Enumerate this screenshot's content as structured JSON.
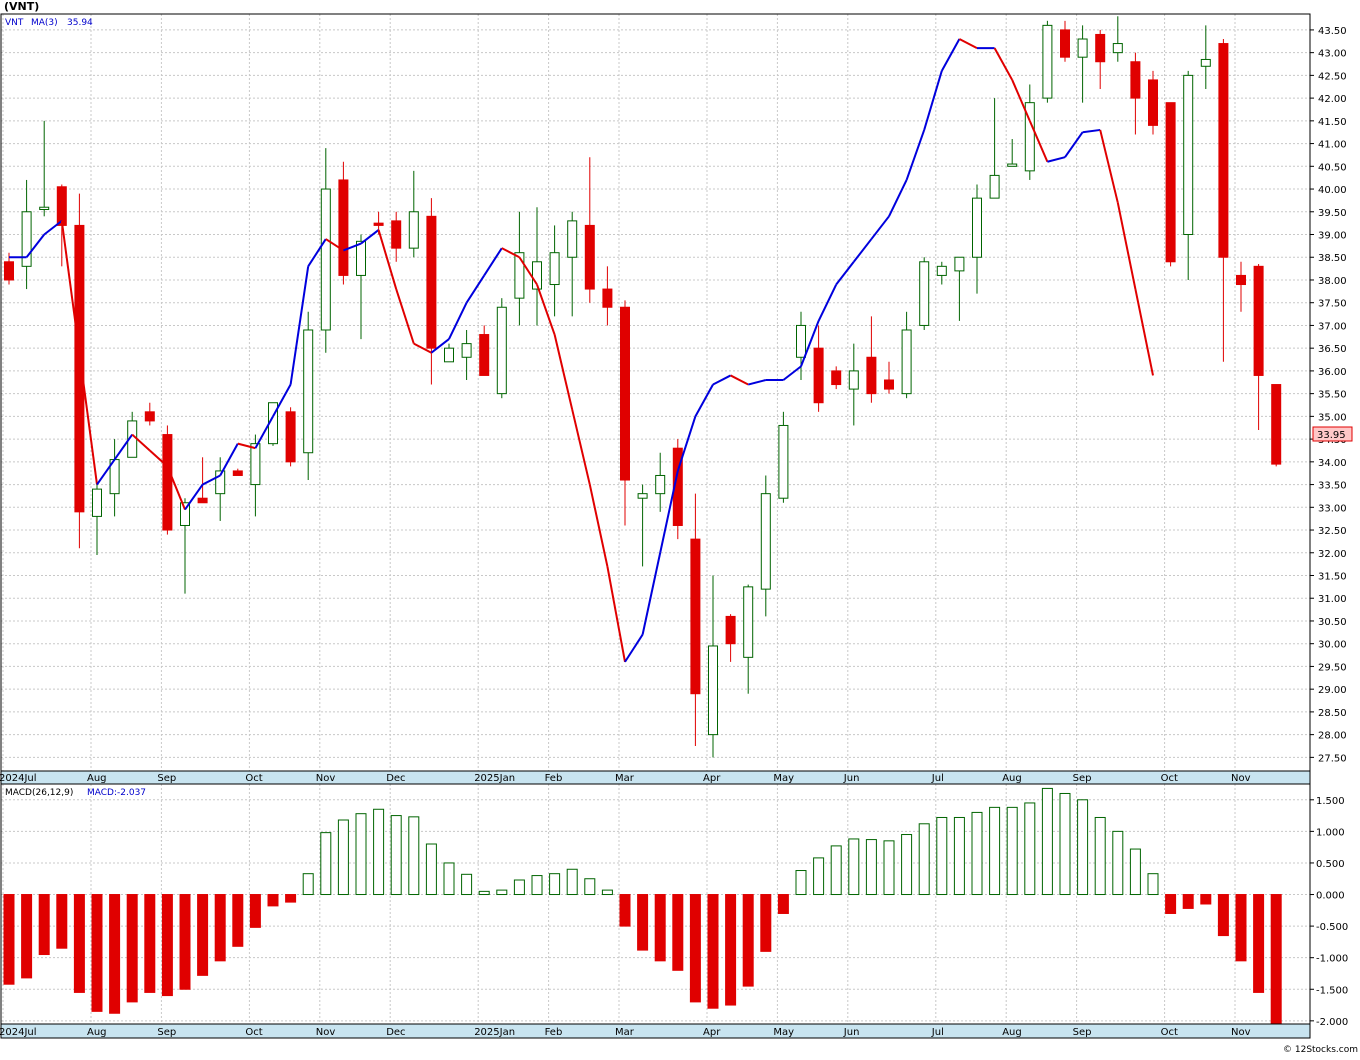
{
  "header": {
    "symbol": "(VNT)"
  },
  "price_panel": {
    "legend_ticker": "VNT",
    "legend_ma_label": "MA(3)",
    "legend_ma_value": "35.94",
    "last_price_label": "33.95"
  },
  "macd_panel": {
    "legend_label": "MACD(26,12,9)",
    "legend_value": "MACD:-2.037"
  },
  "watermark": "© 12Stocks.com",
  "colors": {
    "up": "#006400",
    "down": "#e00000",
    "ma_up": "#0000dd",
    "ma_down": "#e00000",
    "grid": "#c8c8c8",
    "axis_strip": "#c8e4f0",
    "last_price_bg": "#ffc8c8"
  },
  "chart_data": [
    {
      "type": "candlestick",
      "title": "(VNT)",
      "period": "weekly",
      "ylim": [
        27.2,
        43.85
      ],
      "y_ticks": [
        "27.50",
        "28.00",
        "28.50",
        "29.00",
        "29.50",
        "30.00",
        "30.50",
        "31.00",
        "31.50",
        "32.00",
        "32.50",
        "33.00",
        "33.50",
        "34.00",
        "34.50",
        "35.00",
        "35.50",
        "36.00",
        "36.50",
        "37.00",
        "37.50",
        "38.00",
        "38.50",
        "39.00",
        "39.50",
        "40.00",
        "40.50",
        "41.00",
        "41.50",
        "42.00",
        "42.50",
        "43.00",
        "43.50"
      ],
      "x_ticks": [
        {
          "label": "2024Jul",
          "index": 0
        },
        {
          "label": "Aug",
          "index": 5
        },
        {
          "label": "Sep",
          "index": 9
        },
        {
          "label": "Oct",
          "index": 14
        },
        {
          "label": "Nov",
          "index": 18
        },
        {
          "label": "Dec",
          "index": 22
        },
        {
          "label": "2025Jan",
          "index": 27
        },
        {
          "label": "Feb",
          "index": 31
        },
        {
          "label": "Mar",
          "index": 35
        },
        {
          "label": "Apr",
          "index": 40
        },
        {
          "label": "May",
          "index": 44
        },
        {
          "label": "Jun",
          "index": 48
        },
        {
          "label": "Jul",
          "index": 53
        },
        {
          "label": "Aug",
          "index": 57
        },
        {
          "label": "Sep",
          "index": 61
        },
        {
          "label": "Oct",
          "index": 66
        },
        {
          "label": "Nov",
          "index": 70
        }
      ],
      "candles": [
        {
          "o": 38.4,
          "h": 38.6,
          "l": 37.9,
          "c": 38.0
        },
        {
          "o": 38.3,
          "h": 40.2,
          "l": 37.8,
          "c": 39.5
        },
        {
          "o": 39.55,
          "h": 41.5,
          "l": 39.4,
          "c": 39.6
        },
        {
          "o": 40.05,
          "h": 40.1,
          "l": 38.3,
          "c": 39.2
        },
        {
          "o": 39.2,
          "h": 39.9,
          "l": 32.1,
          "c": 32.9
        },
        {
          "o": 32.8,
          "h": 33.5,
          "l": 31.95,
          "c": 33.4
        },
        {
          "o": 33.3,
          "h": 34.5,
          "l": 32.8,
          "c": 34.05
        },
        {
          "o": 34.1,
          "h": 35.1,
          "l": 34.1,
          "c": 34.9
        },
        {
          "o": 35.1,
          "h": 35.3,
          "l": 34.8,
          "c": 34.9
        },
        {
          "o": 34.6,
          "h": 34.8,
          "l": 32.4,
          "c": 32.5
        },
        {
          "o": 32.6,
          "h": 33.2,
          "l": 31.1,
          "c": 33.1
        },
        {
          "o": 33.2,
          "h": 34.1,
          "l": 33.1,
          "c": 33.1
        },
        {
          "o": 33.3,
          "h": 34.1,
          "l": 32.7,
          "c": 33.8
        },
        {
          "o": 33.8,
          "h": 33.85,
          "l": 33.7,
          "c": 33.7
        },
        {
          "o": 33.5,
          "h": 34.6,
          "l": 32.8,
          "c": 34.4
        },
        {
          "o": 34.4,
          "h": 35.3,
          "l": 34.35,
          "c": 35.3
        },
        {
          "o": 35.1,
          "h": 35.2,
          "l": 33.9,
          "c": 34.0
        },
        {
          "o": 34.2,
          "h": 37.3,
          "l": 33.6,
          "c": 36.9
        },
        {
          "o": 36.9,
          "h": 40.9,
          "l": 36.4,
          "c": 40.0
        },
        {
          "o": 40.2,
          "h": 40.6,
          "l": 37.9,
          "c": 38.1
        },
        {
          "o": 38.1,
          "h": 39.0,
          "l": 36.7,
          "c": 38.85
        },
        {
          "o": 39.25,
          "h": 39.5,
          "l": 39.0,
          "c": 39.2
        },
        {
          "o": 39.3,
          "h": 39.5,
          "l": 38.4,
          "c": 38.7
        },
        {
          "o": 38.7,
          "h": 40.4,
          "l": 38.5,
          "c": 39.5
        },
        {
          "o": 39.4,
          "h": 39.8,
          "l": 35.7,
          "c": 36.5
        },
        {
          "o": 36.2,
          "h": 36.6,
          "l": 36.2,
          "c": 36.5
        },
        {
          "o": 36.3,
          "h": 36.9,
          "l": 35.8,
          "c": 36.6
        },
        {
          "o": 36.8,
          "h": 37.0,
          "l": 35.9,
          "c": 35.9
        },
        {
          "o": 35.5,
          "h": 37.6,
          "l": 35.4,
          "c": 37.4
        },
        {
          "o": 37.6,
          "h": 39.5,
          "l": 37.0,
          "c": 38.6
        },
        {
          "o": 37.8,
          "h": 39.6,
          "l": 37.0,
          "c": 38.4
        },
        {
          "o": 37.9,
          "h": 39.2,
          "l": 37.2,
          "c": 38.6
        },
        {
          "o": 38.5,
          "h": 39.5,
          "l": 37.2,
          "c": 39.3
        },
        {
          "o": 39.2,
          "h": 40.7,
          "l": 37.5,
          "c": 37.8
        },
        {
          "o": 37.8,
          "h": 38.3,
          "l": 37.0,
          "c": 37.4
        },
        {
          "o": 37.4,
          "h": 37.55,
          "l": 32.6,
          "c": 33.6
        },
        {
          "o": 33.2,
          "h": 33.5,
          "l": 31.7,
          "c": 33.3
        },
        {
          "o": 33.3,
          "h": 34.2,
          "l": 32.9,
          "c": 33.7
        },
        {
          "o": 34.3,
          "h": 34.5,
          "l": 32.3,
          "c": 32.6
        },
        {
          "o": 32.3,
          "h": 33.3,
          "l": 27.75,
          "c": 28.9
        },
        {
          "o": 28.0,
          "h": 31.5,
          "l": 27.5,
          "c": 29.95
        },
        {
          "o": 30.6,
          "h": 30.65,
          "l": 29.6,
          "c": 30.0
        },
        {
          "o": 29.7,
          "h": 31.3,
          "l": 28.9,
          "c": 31.25
        },
        {
          "o": 31.2,
          "h": 33.7,
          "l": 30.6,
          "c": 33.3
        },
        {
          "o": 33.2,
          "h": 35.1,
          "l": 33.1,
          "c": 34.8
        },
        {
          "o": 36.3,
          "h": 37.3,
          "l": 35.8,
          "c": 37.0
        },
        {
          "o": 36.5,
          "h": 37.0,
          "l": 35.1,
          "c": 35.3
        },
        {
          "o": 36.0,
          "h": 36.1,
          "l": 35.6,
          "c": 35.7
        },
        {
          "o": 35.6,
          "h": 36.6,
          "l": 34.8,
          "c": 36.0
        },
        {
          "o": 36.3,
          "h": 37.2,
          "l": 35.3,
          "c": 35.5
        },
        {
          "o": 35.8,
          "h": 36.2,
          "l": 35.5,
          "c": 35.6
        },
        {
          "o": 35.5,
          "h": 37.3,
          "l": 35.4,
          "c": 36.9
        },
        {
          "o": 37.0,
          "h": 38.5,
          "l": 36.9,
          "c": 38.4
        },
        {
          "o": 38.1,
          "h": 38.4,
          "l": 37.9,
          "c": 38.3
        },
        {
          "o": 38.2,
          "h": 38.5,
          "l": 37.1,
          "c": 38.5
        },
        {
          "o": 38.5,
          "h": 40.1,
          "l": 37.7,
          "c": 39.8
        },
        {
          "o": 39.8,
          "h": 42.0,
          "l": 39.8,
          "c": 40.3
        },
        {
          "o": 40.5,
          "h": 41.1,
          "l": 40.5,
          "c": 40.55
        },
        {
          "o": 40.4,
          "h": 42.3,
          "l": 40.2,
          "c": 41.9
        },
        {
          "o": 42.0,
          "h": 43.7,
          "l": 41.9,
          "c": 43.6
        },
        {
          "o": 43.5,
          "h": 43.7,
          "l": 42.8,
          "c": 42.9
        },
        {
          "o": 42.9,
          "h": 43.6,
          "l": 41.9,
          "c": 43.3
        },
        {
          "o": 43.4,
          "h": 43.5,
          "l": 42.2,
          "c": 42.8
        },
        {
          "o": 43.0,
          "h": 43.8,
          "l": 42.8,
          "c": 43.2
        },
        {
          "o": 42.8,
          "h": 43.0,
          "l": 41.2,
          "c": 42.0
        },
        {
          "o": 42.4,
          "h": 42.6,
          "l": 41.2,
          "c": 41.4
        },
        {
          "o": 41.9,
          "h": 41.9,
          "l": 38.3,
          "c": 38.4
        },
        {
          "o": 39.0,
          "h": 42.6,
          "l": 38.0,
          "c": 42.5
        },
        {
          "o": 42.7,
          "h": 43.6,
          "l": 42.2,
          "c": 42.85
        },
        {
          "o": 43.2,
          "h": 43.3,
          "l": 36.2,
          "c": 38.5
        },
        {
          "o": 38.1,
          "h": 38.4,
          "l": 37.3,
          "c": 37.9
        },
        {
          "o": 38.3,
          "h": 38.35,
          "l": 34.7,
          "c": 35.9
        },
        {
          "o": 35.7,
          "h": 35.7,
          "l": 33.9,
          "c": 33.95
        }
      ],
      "ma3": [
        38.5,
        38.5,
        39.0,
        39.3,
        null,
        33.5,
        null,
        34.6,
        null,
        33.9,
        32.95,
        33.5,
        33.7,
        34.4,
        34.3,
        null,
        35.7,
        38.3,
        38.9,
        38.65,
        38.8,
        39.1,
        37.8,
        36.6,
        36.4,
        36.7,
        37.5,
        38.1,
        38.7,
        38.5,
        37.9,
        36.8,
        null,
        33.5,
        31.7,
        29.6,
        30.2,
        32.0,
        33.8,
        35.0,
        35.7,
        35.9,
        35.7,
        35.8,
        35.8,
        36.1,
        37.1,
        37.9,
        38.4,
        38.9,
        39.4,
        40.2,
        41.3,
        42.6,
        43.3,
        43.1,
        43.1,
        42.4,
        null,
        40.6,
        40.7,
        41.25,
        41.3,
        39.7,
        37.8,
        35.9
      ],
      "ma3_x_offset_note": "",
      "ma3_start_index": 0
    },
    {
      "type": "bar",
      "title": "MACD(26,12,9)",
      "ylim": [
        -2.05,
        1.75
      ],
      "y_ticks": [
        "-2.000",
        "-1.500",
        "-1.000",
        "-0.500",
        "0.000",
        "0.500",
        "1.000",
        "1.500"
      ],
      "values": [
        -1.42,
        -1.32,
        -0.95,
        -0.85,
        -1.55,
        -1.85,
        -1.88,
        -1.7,
        -1.55,
        -1.6,
        -1.5,
        -1.28,
        -1.05,
        -0.82,
        -0.52,
        -0.18,
        -0.12,
        0.33,
        0.98,
        1.18,
        1.28,
        1.35,
        1.25,
        1.23,
        0.8,
        0.5,
        0.32,
        0.05,
        0.07,
        0.23,
        0.3,
        0.33,
        0.4,
        0.25,
        0.07,
        -0.5,
        -0.88,
        -1.05,
        -1.2,
        -1.7,
        -1.8,
        -1.75,
        -1.45,
        -0.9,
        -0.3,
        0.38,
        0.58,
        0.77,
        0.88,
        0.87,
        0.85,
        0.95,
        1.12,
        1.22,
        1.22,
        1.3,
        1.38,
        1.38,
        1.45,
        1.68,
        1.6,
        1.5,
        1.22,
        1.0,
        0.72,
        0.33,
        -0.3,
        -0.22,
        -0.15,
        -0.65,
        -1.05,
        -1.55,
        -2.037
      ]
    }
  ]
}
